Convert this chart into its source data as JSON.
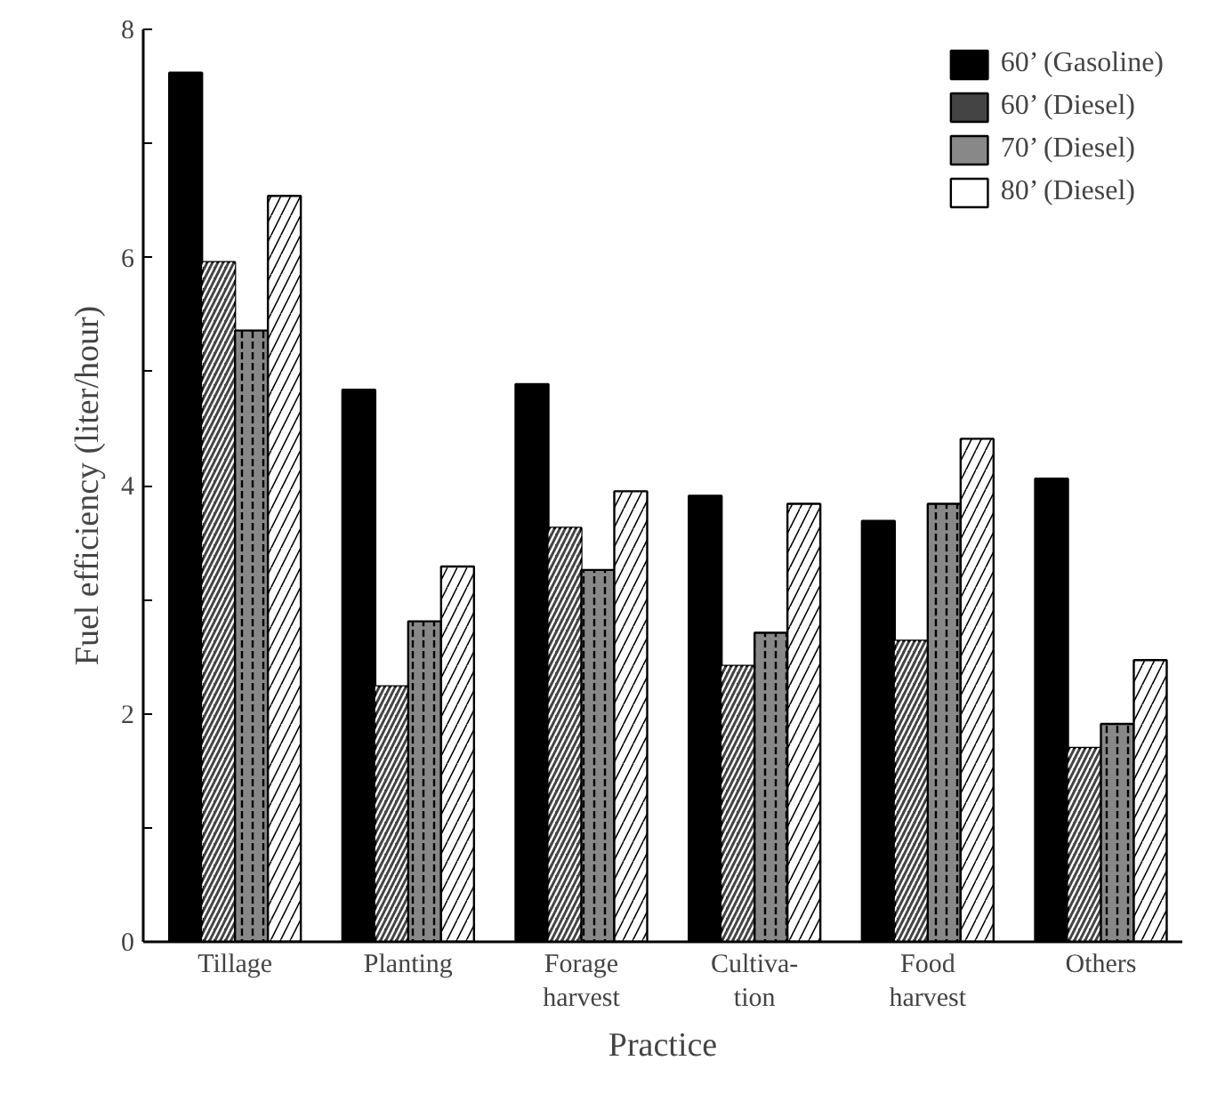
{
  "chart_data": {
    "type": "bar",
    "xlabel": "Practice",
    "ylabel": "Fuel efficiency (liter/hour)",
    "categories": [
      "Tillage",
      "Planting",
      "Forage\nharvest",
      "Cultiva-\ntion",
      "Food\nharvest",
      "Others"
    ],
    "series": [
      {
        "name": "60’ (Gasoline)",
        "color": "#000000",
        "values": [
          7.62,
          4.84,
          4.89,
          3.91,
          3.69,
          4.06
        ]
      },
      {
        "name": "60’ (Diesel)",
        "color": "#444444",
        "values": [
          5.96,
          2.24,
          3.63,
          2.42,
          2.64,
          1.7
        ]
      },
      {
        "name": "70’ (Diesel)",
        "color": "#888888",
        "values": [
          5.36,
          2.81,
          3.26,
          2.71,
          3.84,
          1.91
        ]
      },
      {
        "name": "80’ (Diesel)",
        "color": "#ffffff",
        "values": [
          6.54,
          3.29,
          3.95,
          3.84,
          4.41,
          2.47
        ]
      }
    ],
    "ylim": [
      0,
      8
    ],
    "yticks": [
      0,
      {
        "value": 1,
        "label": null
      },
      2,
      {
        "value": 3,
        "label": null
      },
      4,
      {
        "value": 5,
        "label": null
      },
      6,
      {
        "value": 7,
        "label": null
      },
      8
    ],
    "grid": false,
    "legend": "top right"
  }
}
